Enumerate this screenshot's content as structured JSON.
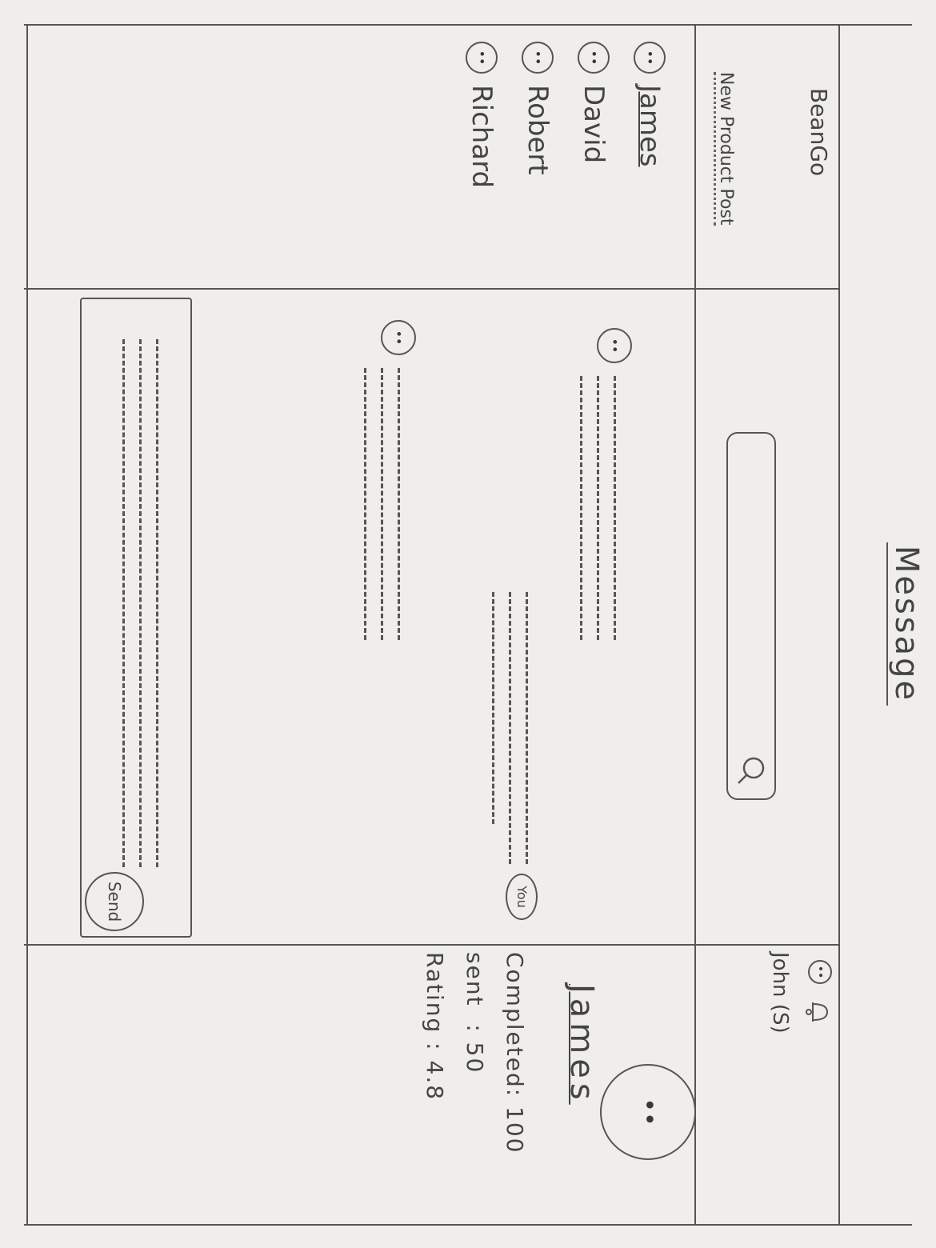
{
  "page": {
    "title": "Message"
  },
  "header": {
    "brand": "BeanGo",
    "new_post_link": "New Product Post",
    "user_name": "John (S)"
  },
  "search": {
    "placeholder": ""
  },
  "contacts": [
    {
      "name": "James",
      "active": true
    },
    {
      "name": "David",
      "active": false
    },
    {
      "name": "Robert",
      "active": false
    },
    {
      "name": "Richard",
      "active": false
    }
  ],
  "conversation": {
    "self_label": "You"
  },
  "composer": {
    "send_label": "Send"
  },
  "profile": {
    "name": "James",
    "completed": "Completed: 100",
    "sent": "sent  : 50",
    "rating": "Rating : 4.8"
  }
}
